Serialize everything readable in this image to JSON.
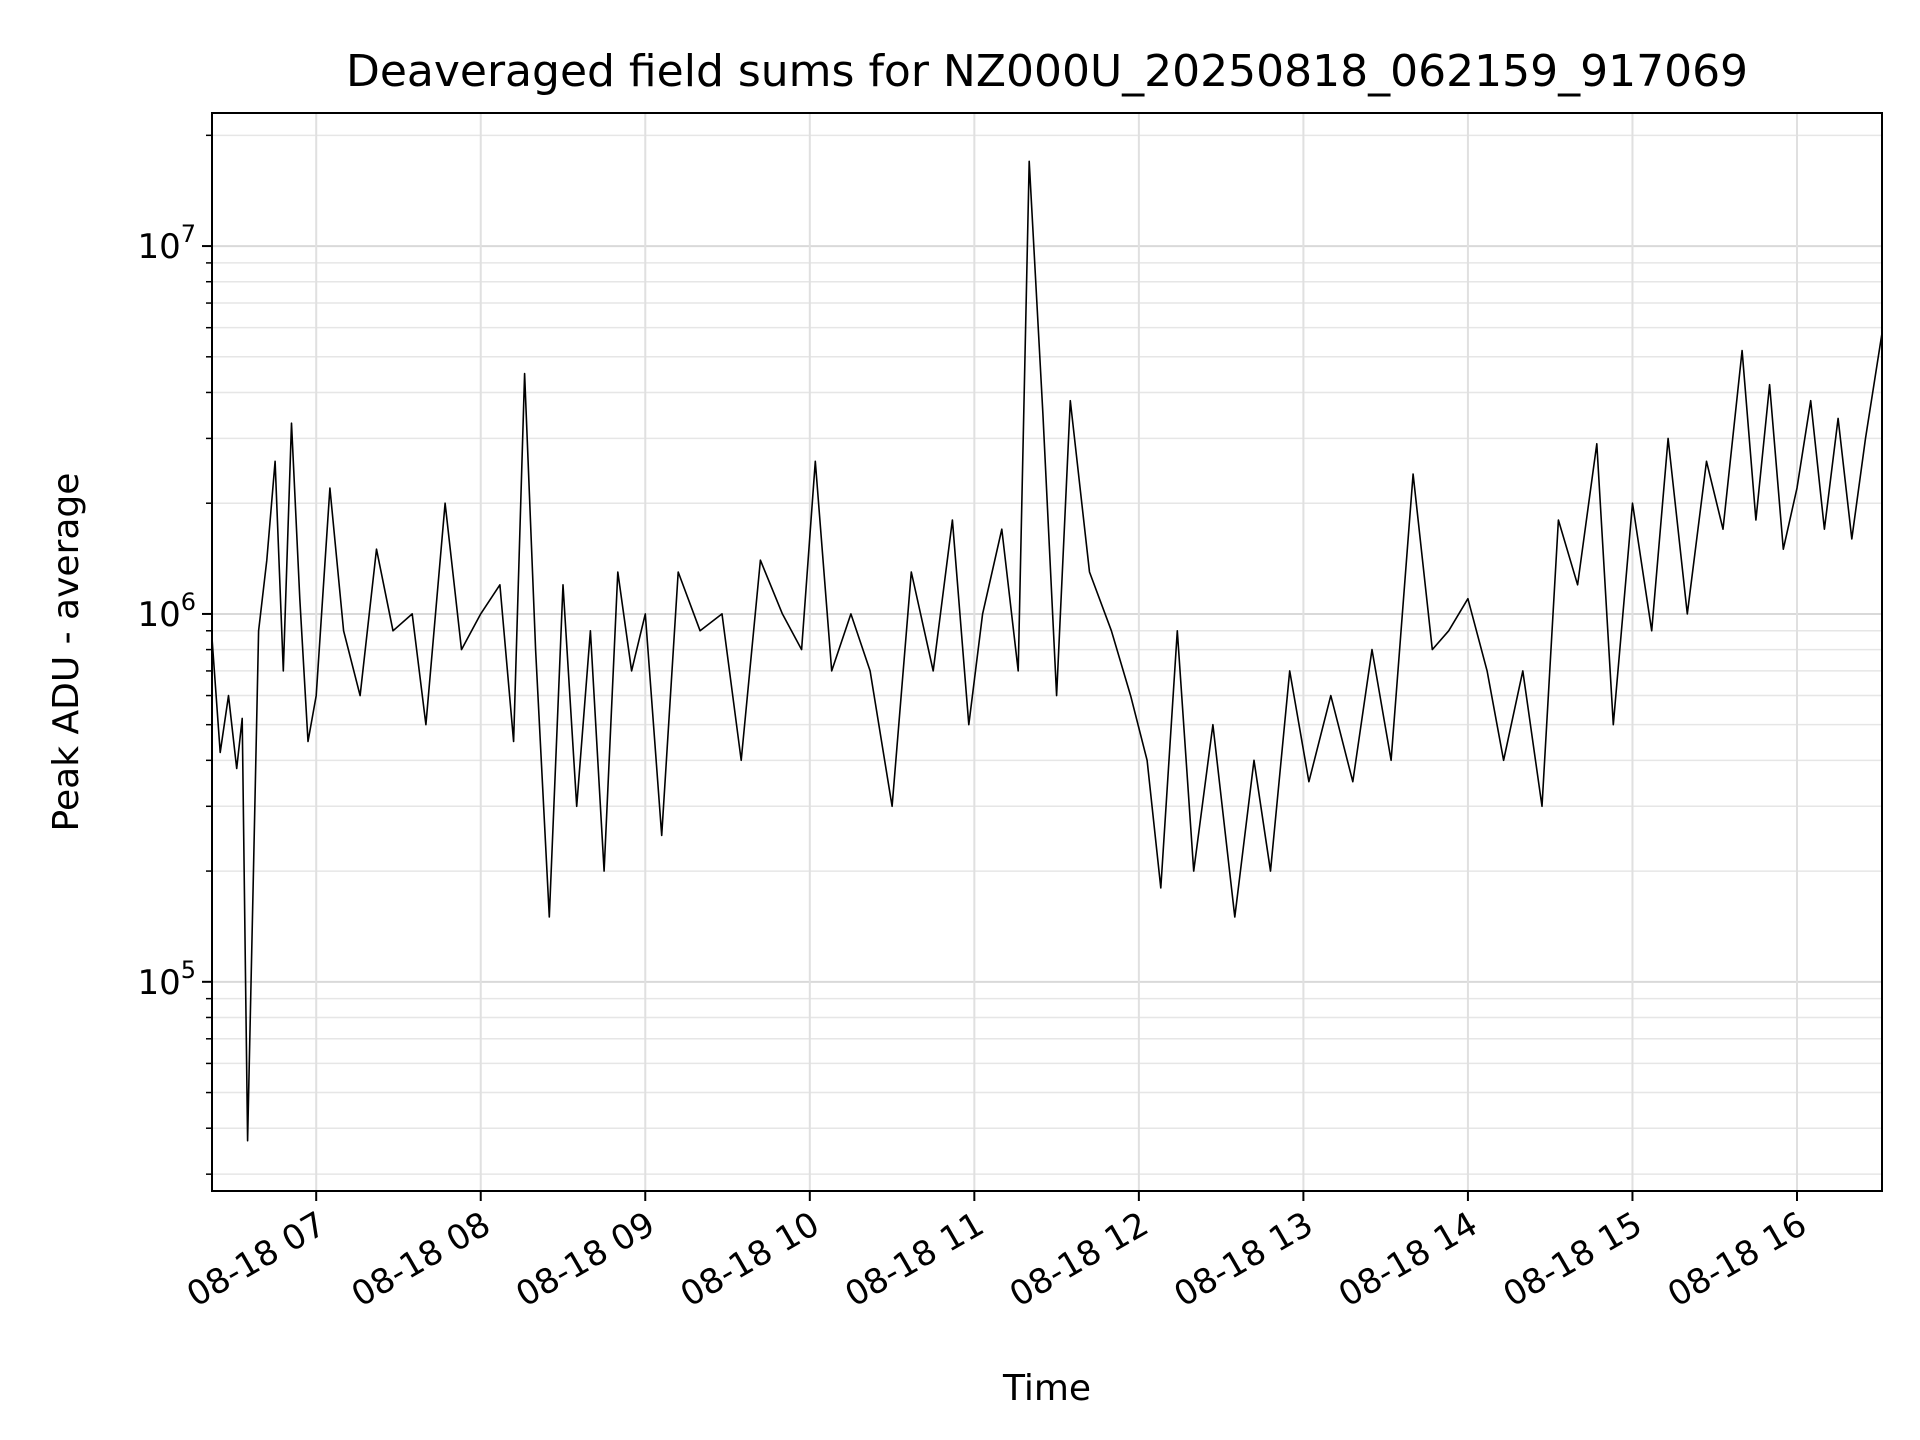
{
  "chart_data": {
    "type": "line",
    "title": "Deaveraged field sums for NZ000U_20250818_062159_917069",
    "xlabel": "Time",
    "ylabel": "Peak ADU - average",
    "yscale": "log",
    "ylim": [
      27000,
      23000000
    ],
    "xlim": [
      "08-18 06:22",
      "08-18 16:31"
    ],
    "grid": true,
    "line_color": "#000000",
    "x_ticks": [
      "08-18 07",
      "08-18 08",
      "08-18 09",
      "08-18 10",
      "08-18 11",
      "08-18 12",
      "08-18 13",
      "08-18 14",
      "08-18 15",
      "08-18 16"
    ],
    "y_ticks": [
      {
        "base": "10",
        "exp": "5",
        "value": 100000
      },
      {
        "base": "10",
        "exp": "6",
        "value": 1000000
      },
      {
        "base": "10",
        "exp": "7",
        "value": 10000000
      }
    ],
    "series": [
      {
        "x": [
          "08-18 06:22",
          "08-18 06:25",
          "08-18 06:28",
          "08-18 06:31",
          "08-18 06:33",
          "08-18 06:35",
          "08-18 06:37",
          "08-18 06:39",
          "08-18 06:42",
          "08-18 06:45",
          "08-18 06:48",
          "08-18 06:51",
          "08-18 06:54",
          "08-18 06:57",
          "08-18 07:00",
          "08-18 07:05",
          "08-18 07:10",
          "08-18 07:16",
          "08-18 07:22",
          "08-18 07:28",
          "08-18 07:35",
          "08-18 07:40",
          "08-18 07:47",
          "08-18 07:53",
          "08-18 08:00",
          "08-18 08:07",
          "08-18 08:12",
          "08-18 08:16",
          "08-18 08:20",
          "08-18 08:25",
          "08-18 08:30",
          "08-18 08:35",
          "08-18 08:40",
          "08-18 08:45",
          "08-18 08:50",
          "08-18 08:55",
          "08-18 09:00",
          "08-18 09:06",
          "08-18 09:12",
          "08-18 09:20",
          "08-18 09:28",
          "08-18 09:35",
          "08-18 09:42",
          "08-18 09:50",
          "08-18 09:57",
          "08-18 10:02",
          "08-18 10:08",
          "08-18 10:15",
          "08-18 10:22",
          "08-18 10:30",
          "08-18 10:37",
          "08-18 10:45",
          "08-18 10:52",
          "08-18 10:58",
          "08-18 11:03",
          "08-18 11:10",
          "08-18 11:16",
          "08-18 11:20",
          "08-18 11:25",
          "08-18 11:30",
          "08-18 11:35",
          "08-18 11:42",
          "08-18 11:50",
          "08-18 11:57",
          "08-18 12:03",
          "08-18 12:08",
          "08-18 12:14",
          "08-18 12:20",
          "08-18 12:27",
          "08-18 12:35",
          "08-18 12:42",
          "08-18 12:48",
          "08-18 12:55",
          "08-18 13:02",
          "08-18 13:10",
          "08-18 13:18",
          "08-18 13:25",
          "08-18 13:32",
          "08-18 13:40",
          "08-18 13:47",
          "08-18 13:53",
          "08-18 14:00",
          "08-18 14:07",
          "08-18 14:13",
          "08-18 14:20",
          "08-18 14:27",
          "08-18 14:33",
          "08-18 14:40",
          "08-18 14:47",
          "08-18 14:53",
          "08-18 15:00",
          "08-18 15:07",
          "08-18 15:13",
          "08-18 15:20",
          "08-18 15:27",
          "08-18 15:33",
          "08-18 15:40",
          "08-18 15:45",
          "08-18 15:50",
          "08-18 15:55",
          "08-18 16:00",
          "08-18 16:05",
          "08-18 16:10",
          "08-18 16:15",
          "08-18 16:20",
          "08-18 16:25",
          "08-18 16:31"
        ],
        "y": [
          860000,
          420000,
          600000,
          380000,
          520000,
          37000,
          180000,
          900000,
          1400000,
          2600000,
          700000,
          3300000,
          1100000,
          450000,
          600000,
          2200000,
          900000,
          600000,
          1500000,
          900000,
          1000000,
          500000,
          2000000,
          800000,
          1000000,
          1200000,
          450000,
          4500000,
          800000,
          150000,
          1200000,
          300000,
          900000,
          200000,
          1300000,
          700000,
          1000000,
          250000,
          1300000,
          900000,
          1000000,
          400000,
          1400000,
          1000000,
          800000,
          2600000,
          700000,
          1000000,
          700000,
          300000,
          1300000,
          700000,
          1800000,
          500000,
          1000000,
          1700000,
          700000,
          17000000,
          3500000,
          600000,
          3800000,
          1300000,
          900000,
          600000,
          400000,
          180000,
          900000,
          200000,
          500000,
          150000,
          400000,
          200000,
          700000,
          350000,
          600000,
          350000,
          800000,
          400000,
          2400000,
          800000,
          900000,
          1100000,
          700000,
          400000,
          700000,
          300000,
          1800000,
          1200000,
          2900000,
          500000,
          2000000,
          900000,
          3000000,
          1000000,
          2600000,
          1700000,
          5200000,
          1800000,
          4200000,
          1500000,
          2200000,
          3800000,
          1700000,
          3400000,
          1600000,
          3000000,
          5800000
        ]
      }
    ]
  }
}
